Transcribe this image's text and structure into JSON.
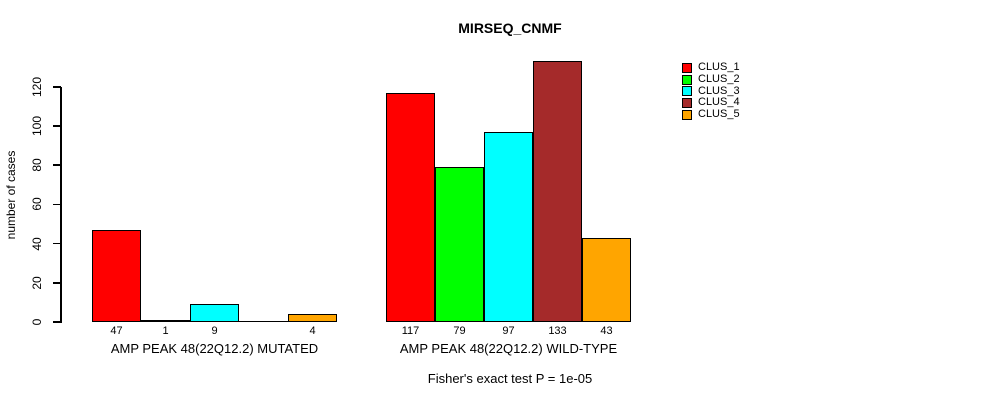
{
  "chart_data": {
    "type": "bar",
    "title": "MIRSEQ_CNMF",
    "ylabel": "number of cases",
    "xlabel": "",
    "yticks": [
      0,
      20,
      40,
      60,
      80,
      100,
      120
    ],
    "ylim": [
      0,
      133
    ],
    "grid": false,
    "legend_position": "top-right",
    "categories": [
      "AMP PEAK 48(22Q12.2) MUTATED",
      "AMP PEAK 48(22Q12.2) WILD-TYPE"
    ],
    "series": [
      {
        "name": "CLUS_1",
        "color": "#ff0000",
        "values": [
          47,
          117
        ]
      },
      {
        "name": "CLUS_2",
        "color": "#00ff00",
        "values": [
          1,
          79
        ]
      },
      {
        "name": "CLUS_3",
        "color": "#00ffff",
        "values": [
          9,
          97
        ]
      },
      {
        "name": "CLUS_4",
        "color": "#a52a2a",
        "values": [
          0,
          133
        ]
      },
      {
        "name": "CLUS_5",
        "color": "#ffa500",
        "values": [
          4,
          43
        ]
      }
    ],
    "bar_value_labels": [
      [
        "47",
        "1",
        "9",
        "",
        "4"
      ],
      [
        "117",
        "79",
        "97",
        "133",
        "43"
      ]
    ],
    "annotation": "Fisher's exact test P = 1e-05"
  }
}
